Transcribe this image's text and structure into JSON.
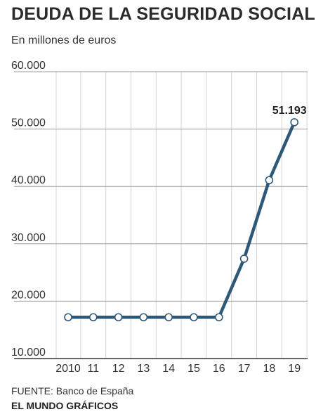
{
  "title": "DEUDA DE LA SEGURIDAD SOCIAL",
  "subtitle": "En millones de euros",
  "source": "FUENTE: Banco de España",
  "brand": "EL MUNDO GRÁFICOS",
  "colors": {
    "line": "#2d5878",
    "grid": "#d4d4d4",
    "axis": "#333333",
    "marker_fill": "#ffffff"
  },
  "chart_data": {
    "type": "line",
    "categories": [
      "2010",
      "11",
      "12",
      "13",
      "14",
      "15",
      "16",
      "17",
      "18",
      "19"
    ],
    "values": [
      17200,
      17200,
      17200,
      17200,
      17200,
      17200,
      17200,
      27400,
      41100,
      51193
    ],
    "yticks": [
      "60.000",
      "50.000",
      "40.000",
      "30.000",
      "20.000",
      "10.000"
    ],
    "ytick_values": [
      60000,
      50000,
      40000,
      30000,
      20000,
      10000
    ],
    "ylim": [
      10000,
      60000
    ],
    "annotation": {
      "index": 9,
      "text": "51.193"
    },
    "grid": true
  }
}
